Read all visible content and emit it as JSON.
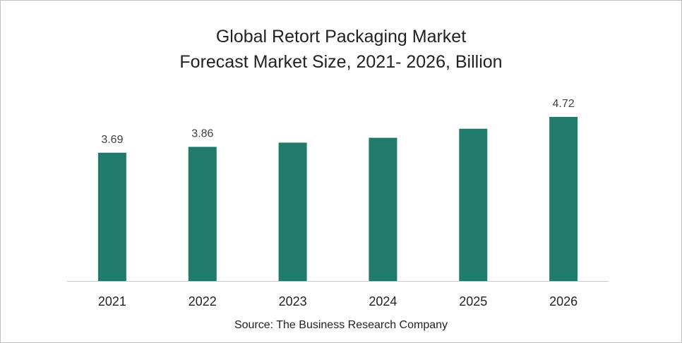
{
  "chart_data": {
    "type": "bar",
    "title": "Global Retort Packaging Market",
    "subtitle": "Forecast Market Size, 2021- 2026, Billion",
    "categories": [
      "2021",
      "2022",
      "2023",
      "2024",
      "2025",
      "2026"
    ],
    "values": [
      3.69,
      3.86,
      3.98,
      4.12,
      4.38,
      4.72
    ],
    "data_labels": [
      "3.69",
      "3.86",
      "",
      "",
      "",
      "4.72"
    ],
    "xlabel": "",
    "ylabel": "",
    "ylim": [
      0,
      4.72
    ],
    "grid": false,
    "legend": "none",
    "bar_color": "#217b6b",
    "source": "Source: The Business Research Company"
  }
}
